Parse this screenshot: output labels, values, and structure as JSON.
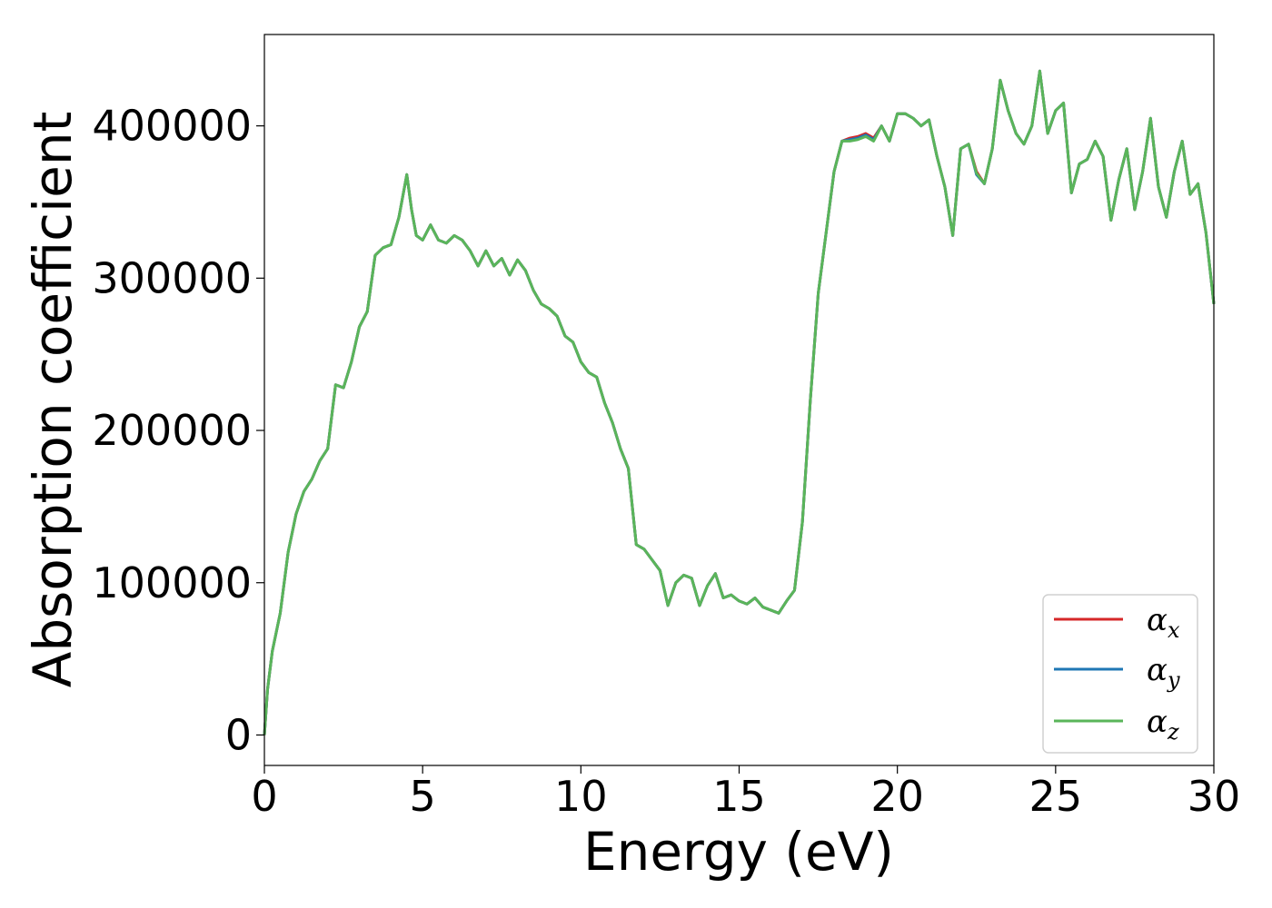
{
  "chart_data": {
    "type": "line",
    "title": "",
    "xlabel": "Energy (eV)",
    "ylabel": "Absorption coefficient",
    "xlim": [
      0,
      30
    ],
    "ylim": [
      -20000,
      460000
    ],
    "xticks": [
      0,
      5,
      10,
      15,
      20,
      25,
      30
    ],
    "xtick_labels": [
      "0",
      "5",
      "10",
      "15",
      "20",
      "25",
      "30"
    ],
    "yticks": [
      0,
      100000,
      200000,
      300000,
      400000
    ],
    "ytick_labels": [
      "0",
      "100000",
      "200000",
      "300000",
      "400000"
    ],
    "grid": false,
    "legend_position": "lower-right",
    "x": [
      0,
      0.1,
      0.25,
      0.5,
      0.75,
      1.0,
      1.25,
      1.5,
      1.75,
      2.0,
      2.25,
      2.5,
      2.75,
      3.0,
      3.25,
      3.5,
      3.75,
      4.0,
      4.25,
      4.5,
      4.65,
      4.8,
      5.0,
      5.25,
      5.5,
      5.75,
      6.0,
      6.25,
      6.5,
      6.75,
      7.0,
      7.25,
      7.5,
      7.75,
      8.0,
      8.25,
      8.5,
      8.75,
      9.0,
      9.25,
      9.5,
      9.75,
      10.0,
      10.25,
      10.5,
      10.75,
      11.0,
      11.25,
      11.5,
      11.75,
      12.0,
      12.25,
      12.5,
      12.75,
      13.0,
      13.25,
      13.5,
      13.75,
      14.0,
      14.25,
      14.5,
      14.75,
      15.0,
      15.25,
      15.5,
      15.75,
      16.0,
      16.25,
      16.5,
      16.75,
      17.0,
      17.25,
      17.5,
      17.75,
      18.0,
      18.25,
      18.5,
      18.75,
      19.0,
      19.25,
      19.5,
      19.75,
      20.0,
      20.25,
      20.5,
      20.75,
      21.0,
      21.25,
      21.5,
      21.75,
      22.0,
      22.25,
      22.5,
      22.75,
      23.0,
      23.25,
      23.5,
      23.75,
      24.0,
      24.25,
      24.5,
      24.75,
      25.0,
      25.25,
      25.5,
      25.75,
      26.0,
      26.25,
      26.5,
      26.75,
      27.0,
      27.25,
      27.5,
      27.75,
      28.0,
      28.25,
      28.5,
      28.75,
      29.0,
      29.25,
      29.5,
      29.75,
      30.0
    ],
    "series": [
      {
        "name": "αx",
        "color": "#d62728",
        "values": [
          0,
          30000,
          55000,
          80000,
          120000,
          145000,
          160000,
          168000,
          180000,
          188000,
          230000,
          228000,
          245000,
          268000,
          278000,
          315000,
          320000,
          322000,
          340000,
          368000,
          345000,
          328000,
          325000,
          335000,
          325000,
          323000,
          328000,
          325000,
          318000,
          308000,
          318000,
          308000,
          313000,
          302000,
          312000,
          305000,
          292000,
          283000,
          280000,
          275000,
          262000,
          258000,
          245000,
          238000,
          235000,
          218000,
          205000,
          188000,
          175000,
          125000,
          122000,
          115000,
          108000,
          85000,
          100000,
          105000,
          103000,
          85000,
          98000,
          106000,
          90000,
          92000,
          88000,
          86000,
          90000,
          84000,
          82000,
          80000,
          88000,
          95000,
          140000,
          220000,
          290000,
          330000,
          370000,
          390000,
          392000,
          393000,
          395000,
          392000,
          400000,
          390000,
          408000,
          408000,
          405000,
          400000,
          404000,
          380000,
          360000,
          328000,
          385000,
          388000,
          370000,
          362000,
          385000,
          430000,
          410000,
          395000,
          388000,
          400000,
          436000,
          395000,
          410000,
          415000,
          356000,
          375000,
          378000,
          390000,
          380000,
          338000,
          365000,
          385000,
          345000,
          370000,
          405000,
          360000,
          340000,
          370000,
          390000,
          355000,
          362000,
          330000,
          283000
        ],
        "values_note_hidden": ""
      },
      {
        "name": "αy",
        "color": "#1f77b4",
        "values": [
          0,
          30000,
          55000,
          80000,
          120000,
          145000,
          160000,
          168000,
          180000,
          188000,
          230000,
          228000,
          245000,
          268000,
          278000,
          315000,
          320000,
          322000,
          340000,
          368000,
          345000,
          328000,
          325000,
          335000,
          325000,
          323000,
          328000,
          325000,
          318000,
          308000,
          318000,
          308000,
          313000,
          302000,
          312000,
          305000,
          292000,
          283000,
          280000,
          275000,
          262000,
          258000,
          245000,
          238000,
          235000,
          218000,
          205000,
          188000,
          175000,
          125000,
          122000,
          115000,
          108000,
          85000,
          100000,
          105000,
          103000,
          85000,
          98000,
          106000,
          90000,
          92000,
          88000,
          86000,
          90000,
          84000,
          82000,
          80000,
          88000,
          95000,
          140000,
          220000,
          290000,
          330000,
          370000,
          390000,
          391000,
          392000,
          394000,
          391000,
          400000,
          390000,
          408000,
          408000,
          405000,
          400000,
          404000,
          380000,
          360000,
          328000,
          385000,
          388000,
          368000,
          362000,
          385000,
          430000,
          410000,
          395000,
          388000,
          400000,
          436000,
          395000,
          410000,
          415000,
          356000,
          375000,
          378000,
          390000,
          380000,
          338000,
          365000,
          385000,
          345000,
          370000,
          405000,
          360000,
          340000,
          370000,
          390000,
          355000,
          362000,
          330000,
          283000
        ]
      },
      {
        "name": "αz",
        "color": "#5ab55a",
        "values": [
          0,
          30000,
          55000,
          80000,
          120000,
          145000,
          160000,
          168000,
          180000,
          188000,
          230000,
          228000,
          245000,
          268000,
          278000,
          315000,
          320000,
          322000,
          340000,
          368000,
          345000,
          328000,
          325000,
          335000,
          325000,
          323000,
          328000,
          325000,
          318000,
          308000,
          318000,
          308000,
          313000,
          302000,
          312000,
          305000,
          292000,
          283000,
          280000,
          275000,
          262000,
          258000,
          245000,
          238000,
          235000,
          218000,
          205000,
          188000,
          175000,
          125000,
          122000,
          115000,
          108000,
          85000,
          100000,
          105000,
          103000,
          85000,
          98000,
          106000,
          90000,
          92000,
          88000,
          86000,
          90000,
          84000,
          82000,
          80000,
          88000,
          95000,
          140000,
          220000,
          290000,
          330000,
          370000,
          390000,
          390000,
          391000,
          393000,
          390000,
          400000,
          390000,
          408000,
          408000,
          405000,
          400000,
          404000,
          380000,
          360000,
          328000,
          385000,
          388000,
          369000,
          362000,
          385000,
          430000,
          410000,
          395000,
          388000,
          400000,
          436000,
          395000,
          410000,
          415000,
          356000,
          375000,
          378000,
          390000,
          380000,
          338000,
          365000,
          385000,
          345000,
          370000,
          405000,
          360000,
          340000,
          370000,
          390000,
          355000,
          362000,
          330000,
          283000
        ]
      }
    ]
  }
}
